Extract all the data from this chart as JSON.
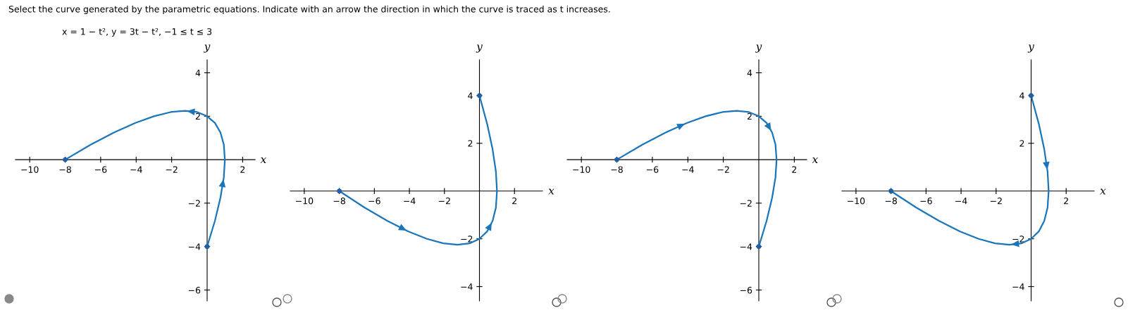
{
  "chart_data": [
    {
      "type": "line",
      "title": "Select the curve generated by the parametric equations. Indicate with an arrow the direction in which the curve is traced as t increases.",
      "subtitle": "x = 1 − t², y = 3t − t², −1 ≤ t ≤ 3",
      "xlabel": "x",
      "ylabel": "y",
      "xlim": [
        -10.8,
        2.7
      ],
      "ylim": [
        -6.5,
        4.6
      ],
      "xticks": [
        {
          "value": -10,
          "label": "−10"
        },
        {
          "value": -8,
          "label": "−8"
        },
        {
          "value": -6,
          "label": "−6"
        },
        {
          "value": -4,
          "label": "−4"
        },
        {
          "value": -2,
          "label": "−2"
        },
        2
      ],
      "yticks": [
        {
          "value": -6,
          "label": "−6"
        },
        {
          "value": -4,
          "label": "−4"
        },
        {
          "value": -2,
          "label": "−2"
        },
        2,
        4
      ],
      "series": [
        {
          "color": "#1a75bb",
          "x": [
            0,
            0.44,
            0.75,
            0.94,
            1,
            0.94,
            0.75,
            0.44,
            0,
            -0.56,
            -1.25,
            -2.06,
            -3,
            -4.06,
            -5.25,
            -6.56,
            -8
          ],
          "values": [
            -4,
            -2.81,
            -1.75,
            -0.81,
            0,
            0.69,
            1.25,
            1.69,
            2,
            2.19,
            2.25,
            2.19,
            2,
            1.69,
            1.25,
            0.69,
            0
          ]
        },
        {
          "type": "scatter",
          "color": "#1f5fa8",
          "x": [
            0,
            -8
          ],
          "values": [
            -4,
            0
          ]
        }
      ]
    },
    {
      "type": "line",
      "xlabel": "x",
      "ylabel": "y",
      "xlim": [
        -10.8,
        3.6
      ],
      "ylim": [
        -4.6,
        5.5
      ],
      "xticks": [
        {
          "value": -10,
          "label": "−10"
        },
        {
          "value": -8,
          "label": "−8"
        },
        {
          "value": -6,
          "label": "−6"
        },
        {
          "value": -4,
          "label": "−4"
        },
        {
          "value": -2,
          "label": "−2"
        },
        2
      ],
      "yticks": [
        {
          "value": -4,
          "label": "−4"
        },
        {
          "value": -2,
          "label": "−2"
        },
        2,
        4
      ],
      "series": [
        {
          "color": "#1a75bb",
          "x": [
            -8,
            -6.56,
            -5.25,
            -4.06,
            -3,
            -2.06,
            -1.25,
            -0.56,
            0,
            0.44,
            0.75,
            0.94,
            1,
            0.94,
            0.75,
            0.44,
            0
          ],
          "values": [
            0,
            -0.69,
            -1.25,
            -1.69,
            -2,
            -2.19,
            -2.25,
            -2.19,
            -2,
            -1.69,
            -1.25,
            -0.69,
            0,
            0.81,
            1.75,
            2.81,
            4
          ]
        },
        {
          "type": "scatter",
          "color": "#1f5fa8",
          "x": [
            0,
            -8
          ],
          "values": [
            4,
            0
          ]
        }
      ]
    },
    {
      "type": "line",
      "xlabel": "x",
      "ylabel": "y",
      "xlim": [
        -10.8,
        2.7
      ],
      "ylim": [
        -6.5,
        4.6
      ],
      "xticks": [
        {
          "value": -10,
          "label": "−10"
        },
        {
          "value": -8,
          "label": "−8"
        },
        {
          "value": -6,
          "label": "−6"
        },
        {
          "value": -4,
          "label": "−4"
        },
        {
          "value": -2,
          "label": "−2"
        },
        2
      ],
      "yticks": [
        {
          "value": -6,
          "label": "−6"
        },
        {
          "value": -4,
          "label": "−4"
        },
        {
          "value": -2,
          "label": "−2"
        },
        2,
        4
      ],
      "series": [
        {
          "color": "#1a75bb",
          "x": [
            -8,
            -6.56,
            -5.25,
            -4.06,
            -3,
            -2.06,
            -1.25,
            -0.56,
            0,
            0.44,
            0.75,
            0.94,
            1,
            0.94,
            0.75,
            0.44,
            0
          ],
          "values": [
            0,
            0.69,
            1.25,
            1.69,
            2,
            2.19,
            2.25,
            2.19,
            2,
            1.69,
            1.25,
            0.69,
            0,
            -0.81,
            -1.75,
            -2.81,
            -4
          ]
        },
        {
          "type": "scatter",
          "color": "#1f5fa8",
          "x": [
            0,
            -8
          ],
          "values": [
            -4,
            0
          ]
        }
      ]
    },
    {
      "type": "line",
      "xlabel": "x",
      "ylabel": "y",
      "xlim": [
        -10.8,
        3.6
      ],
      "ylim": [
        -4.6,
        5.5
      ],
      "xticks": [
        {
          "value": -10,
          "label": "−10"
        },
        {
          "value": -8,
          "label": "−8"
        },
        {
          "value": -6,
          "label": "−6"
        },
        {
          "value": -4,
          "label": "−4"
        },
        {
          "value": -2,
          "label": "−2"
        },
        2
      ],
      "yticks": [
        {
          "value": -4,
          "label": "−4"
        },
        {
          "value": -2,
          "label": "−2"
        },
        2,
        4
      ],
      "series": [
        {
          "color": "#1a75bb",
          "x": [
            0,
            0.44,
            0.75,
            0.94,
            1,
            0.94,
            0.75,
            0.44,
            0,
            -0.56,
            -1.25,
            -2.06,
            -3,
            -4.06,
            -5.25,
            -6.56,
            -8
          ],
          "values": [
            4,
            2.81,
            1.75,
            0.81,
            0,
            -0.69,
            -1.25,
            -1.69,
            -2,
            -2.19,
            -2.25,
            -2.19,
            -2,
            -1.69,
            -1.25,
            -0.69,
            0
          ]
        },
        {
          "type": "scatter",
          "color": "#1f5fa8",
          "x": [
            0,
            -8
          ],
          "values": [
            4,
            0
          ]
        }
      ]
    }
  ]
}
